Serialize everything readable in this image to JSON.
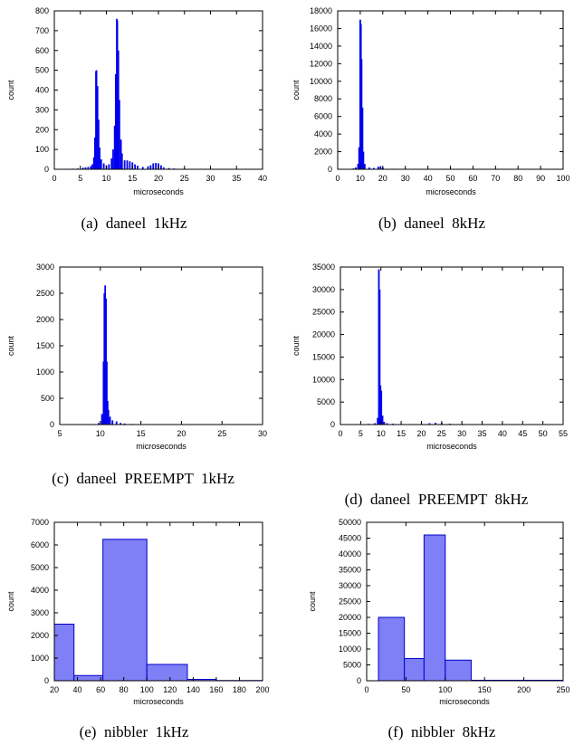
{
  "chart_data": [
    {
      "type": "bar",
      "caption": "(a)  daneel  1kHz",
      "xlabel": "microseconds",
      "ylabel": "count",
      "xlim": [
        0,
        40
      ],
      "ylim": [
        0,
        800
      ],
      "xticks": [
        0,
        5,
        10,
        15,
        20,
        25,
        30,
        35,
        40
      ],
      "yticks": [
        0,
        100,
        200,
        300,
        400,
        500,
        600,
        700,
        800
      ],
      "color": "#0000ee",
      "style": "spikes",
      "points": [
        [
          3.5,
          3
        ],
        [
          4.5,
          4
        ],
        [
          5.5,
          8
        ],
        [
          6.0,
          10
        ],
        [
          6.5,
          12
        ],
        [
          7.0,
          15
        ],
        [
          7.3,
          25
        ],
        [
          7.6,
          60
        ],
        [
          7.8,
          160
        ],
        [
          8.0,
          495
        ],
        [
          8.1,
          500
        ],
        [
          8.3,
          420
        ],
        [
          8.5,
          250
        ],
        [
          8.7,
          110
        ],
        [
          9.0,
          50
        ],
        [
          9.5,
          30
        ],
        [
          10.0,
          20
        ],
        [
          10.5,
          25
        ],
        [
          11.0,
          55
        ],
        [
          11.3,
          100
        ],
        [
          11.6,
          220
        ],
        [
          11.8,
          480
        ],
        [
          12.0,
          760
        ],
        [
          12.1,
          750
        ],
        [
          12.3,
          600
        ],
        [
          12.5,
          350
        ],
        [
          12.8,
          150
        ],
        [
          13.0,
          80
        ],
        [
          13.5,
          45
        ],
        [
          14.0,
          45
        ],
        [
          14.5,
          40
        ],
        [
          15.0,
          35
        ],
        [
          15.5,
          25
        ],
        [
          16.0,
          18
        ],
        [
          17.0,
          12
        ],
        [
          18.0,
          15
        ],
        [
          18.5,
          20
        ],
        [
          19.0,
          30
        ],
        [
          19.5,
          32
        ],
        [
          20.0,
          30
        ],
        [
          20.5,
          20
        ],
        [
          21.0,
          10
        ],
        [
          22.0,
          6
        ],
        [
          23.0,
          4
        ],
        [
          25.0,
          3
        ],
        [
          27.0,
          2
        ],
        [
          30.0,
          2
        ],
        [
          33.0,
          2
        ],
        [
          36.0,
          2
        ]
      ]
    },
    {
      "type": "bar",
      "caption": "(b)  daneel  8kHz",
      "xlabel": "microseconds",
      "ylabel": "count",
      "xlim": [
        0,
        100
      ],
      "ylim": [
        0,
        18000
      ],
      "xticks": [
        0,
        10,
        20,
        30,
        40,
        50,
        60,
        70,
        80,
        90,
        100
      ],
      "yticks": [
        0,
        2000,
        4000,
        6000,
        8000,
        10000,
        12000,
        14000,
        16000,
        18000
      ],
      "color": "#0000ee",
      "style": "spikes",
      "points": [
        [
          5,
          50
        ],
        [
          7,
          100
        ],
        [
          8,
          200
        ],
        [
          9,
          600
        ],
        [
          9.5,
          2500
        ],
        [
          10.0,
          17000
        ],
        [
          10.3,
          16500
        ],
        [
          10.6,
          12500
        ],
        [
          11.0,
          7000
        ],
        [
          11.4,
          2000
        ],
        [
          12,
          600
        ],
        [
          14,
          200
        ],
        [
          16,
          150
        ],
        [
          18,
          300
        ],
        [
          19,
          350
        ],
        [
          20,
          200
        ],
        [
          25,
          60
        ],
        [
          30,
          40
        ],
        [
          40,
          30
        ],
        [
          50,
          30
        ],
        [
          60,
          30
        ],
        [
          70,
          30
        ],
        [
          80,
          25
        ],
        [
          90,
          20
        ],
        [
          95,
          15
        ]
      ]
    },
    {
      "type": "bar",
      "caption": "(c)  daneel  PREEMPT  1kHz",
      "xlabel": "microseconds",
      "ylabel": "count",
      "xlim": [
        5,
        30
      ],
      "ylim": [
        0,
        3000
      ],
      "xticks": [
        5,
        10,
        15,
        20,
        25,
        30
      ],
      "yticks": [
        0,
        500,
        1000,
        1500,
        2000,
        2500,
        3000
      ],
      "color": "#0000ee",
      "style": "spikes",
      "points": [
        [
          7.0,
          5
        ],
        [
          8.0,
          8
        ],
        [
          9.0,
          10
        ],
        [
          9.8,
          30
        ],
        [
          10.2,
          200
        ],
        [
          10.4,
          1200
        ],
        [
          10.5,
          2500
        ],
        [
          10.6,
          2650
        ],
        [
          10.7,
          2400
        ],
        [
          10.8,
          1200
        ],
        [
          10.9,
          450
        ],
        [
          11.0,
          280
        ],
        [
          11.2,
          150
        ],
        [
          11.5,
          80
        ],
        [
          12.0,
          60
        ],
        [
          12.5,
          30
        ],
        [
          13.0,
          20
        ],
        [
          14.0,
          12
        ],
        [
          16.0,
          8
        ],
        [
          18.0,
          5
        ],
        [
          21.0,
          4
        ],
        [
          24.0,
          3
        ],
        [
          27.0,
          3
        ]
      ]
    },
    {
      "type": "bar",
      "caption": "(d)  daneel  PREEMPT  8kHz",
      "xlabel": "microseconds",
      "ylabel": "count",
      "xlim": [
        0,
        55
      ],
      "ylim": [
        0,
        35000
      ],
      "xticks": [
        0,
        5,
        10,
        15,
        20,
        25,
        30,
        35,
        40,
        45,
        50,
        55
      ],
      "yticks": [
        0,
        5000,
        10000,
        15000,
        20000,
        25000,
        30000,
        35000
      ],
      "color": "#0000ee",
      "style": "spikes",
      "points": [
        [
          5,
          80
        ],
        [
          7,
          150
        ],
        [
          8.5,
          300
        ],
        [
          9.2,
          1500
        ],
        [
          9.5,
          34500
        ],
        [
          9.7,
          30000
        ],
        [
          9.9,
          8700
        ],
        [
          10.1,
          7500
        ],
        [
          10.4,
          2000
        ],
        [
          10.8,
          600
        ],
        [
          11.5,
          300
        ],
        [
          13,
          200
        ],
        [
          15,
          150
        ],
        [
          18,
          120
        ],
        [
          20,
          150
        ],
        [
          22,
          300
        ],
        [
          23.5,
          400
        ],
        [
          25,
          350
        ],
        [
          27,
          200
        ],
        [
          30,
          150
        ],
        [
          35,
          120
        ],
        [
          40,
          100
        ],
        [
          45,
          100
        ],
        [
          50,
          100
        ],
        [
          53,
          80
        ]
      ]
    },
    {
      "type": "bar",
      "caption": "(e)  nibbler  1kHz",
      "xlabel": "microseconds",
      "ylabel": "count",
      "xlim": [
        20,
        200
      ],
      "ylim": [
        0,
        7000
      ],
      "xticks": [
        20,
        40,
        60,
        80,
        100,
        120,
        140,
        160,
        180,
        200
      ],
      "yticks": [
        0,
        1000,
        2000,
        3000,
        4000,
        5000,
        6000,
        7000
      ],
      "color": "#7f7ff6",
      "edge": "#0000cc",
      "style": "bins",
      "bins": [
        [
          20,
          37,
          2500
        ],
        [
          37,
          62,
          230
        ],
        [
          62,
          100,
          6250
        ],
        [
          100,
          135,
          720
        ],
        [
          135,
          160,
          60
        ],
        [
          160,
          200,
          10
        ]
      ]
    },
    {
      "type": "bar",
      "caption": "(f)  nibbler  8kHz",
      "xlabel": "microseconds",
      "ylabel": "count",
      "xlim": [
        0,
        250
      ],
      "ylim": [
        0,
        50000
      ],
      "xticks": [
        0,
        50,
        100,
        150,
        200,
        250
      ],
      "yticks": [
        0,
        5000,
        10000,
        15000,
        20000,
        25000,
        30000,
        35000,
        40000,
        45000,
        50000
      ],
      "color": "#7f7ff6",
      "edge": "#0000cc",
      "style": "bins",
      "bins": [
        [
          15,
          48,
          20000
        ],
        [
          48,
          73,
          7000
        ],
        [
          73,
          100,
          46000
        ],
        [
          100,
          133,
          6500
        ],
        [
          133,
          250,
          150
        ]
      ]
    }
  ]
}
